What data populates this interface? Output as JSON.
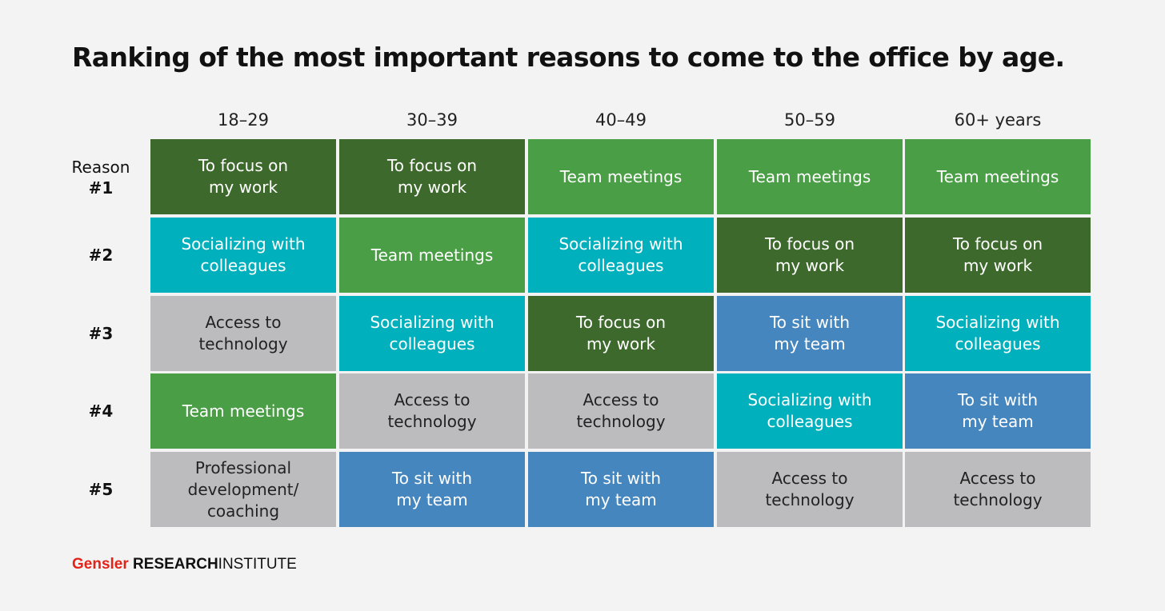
{
  "title": "Ranking of the most important reasons to come to the office by age.",
  "colors": {
    "To focus on my work": "#3d6a2c",
    "Team meetings": "#4a9e45",
    "Socializing with colleagues": "#00b1bd",
    "Access to technology": "#bcbcbe",
    "To sit with my team": "#4686bf",
    "Professional development/ coaching": "#bcbcbe"
  },
  "text_colors": {
    "dark": "#222222",
    "light": "#ffffff"
  },
  "chart_data": {
    "type": "table",
    "title": "Ranking of the most important reasons to come to the office by age.",
    "columns": [
      "18–29",
      "30–39",
      "40–49",
      "50–59",
      "60+ years"
    ],
    "row_prefix": "Reason",
    "rows": [
      "#1",
      "#2",
      "#3",
      "#4",
      "#5"
    ],
    "cells": [
      [
        [
          "To focus on",
          "my work"
        ],
        [
          "To focus on",
          "my work"
        ],
        [
          "Team meetings"
        ],
        [
          "Team meetings"
        ],
        [
          "Team meetings"
        ]
      ],
      [
        [
          "Socializing with",
          "colleagues"
        ],
        [
          "Team meetings"
        ],
        [
          "Socializing with",
          "colleagues"
        ],
        [
          "To focus on",
          "my work"
        ],
        [
          "To focus on",
          "my work"
        ]
      ],
      [
        [
          "Access to",
          "technology"
        ],
        [
          "Socializing with",
          "colleagues"
        ],
        [
          "To focus on",
          "my work"
        ],
        [
          "To sit with",
          "my team"
        ],
        [
          "Socializing with",
          "colleagues"
        ]
      ],
      [
        [
          "Team meetings"
        ],
        [
          "Access to",
          "technology"
        ],
        [
          "Access to",
          "technology"
        ],
        [
          "Socializing with",
          "colleagues"
        ],
        [
          "To sit with",
          "my team"
        ]
      ],
      [
        [
          "Professional",
          "development/",
          "coaching"
        ],
        [
          "To sit with",
          "my team"
        ],
        [
          "To sit with",
          "my team"
        ],
        [
          "Access to",
          "technology"
        ],
        [
          "Access to",
          "technology"
        ]
      ]
    ]
  },
  "footer": {
    "brand": "Gensler",
    "institute_bold": "RESEARCH",
    "institute_rest": "INSTITUTE"
  }
}
